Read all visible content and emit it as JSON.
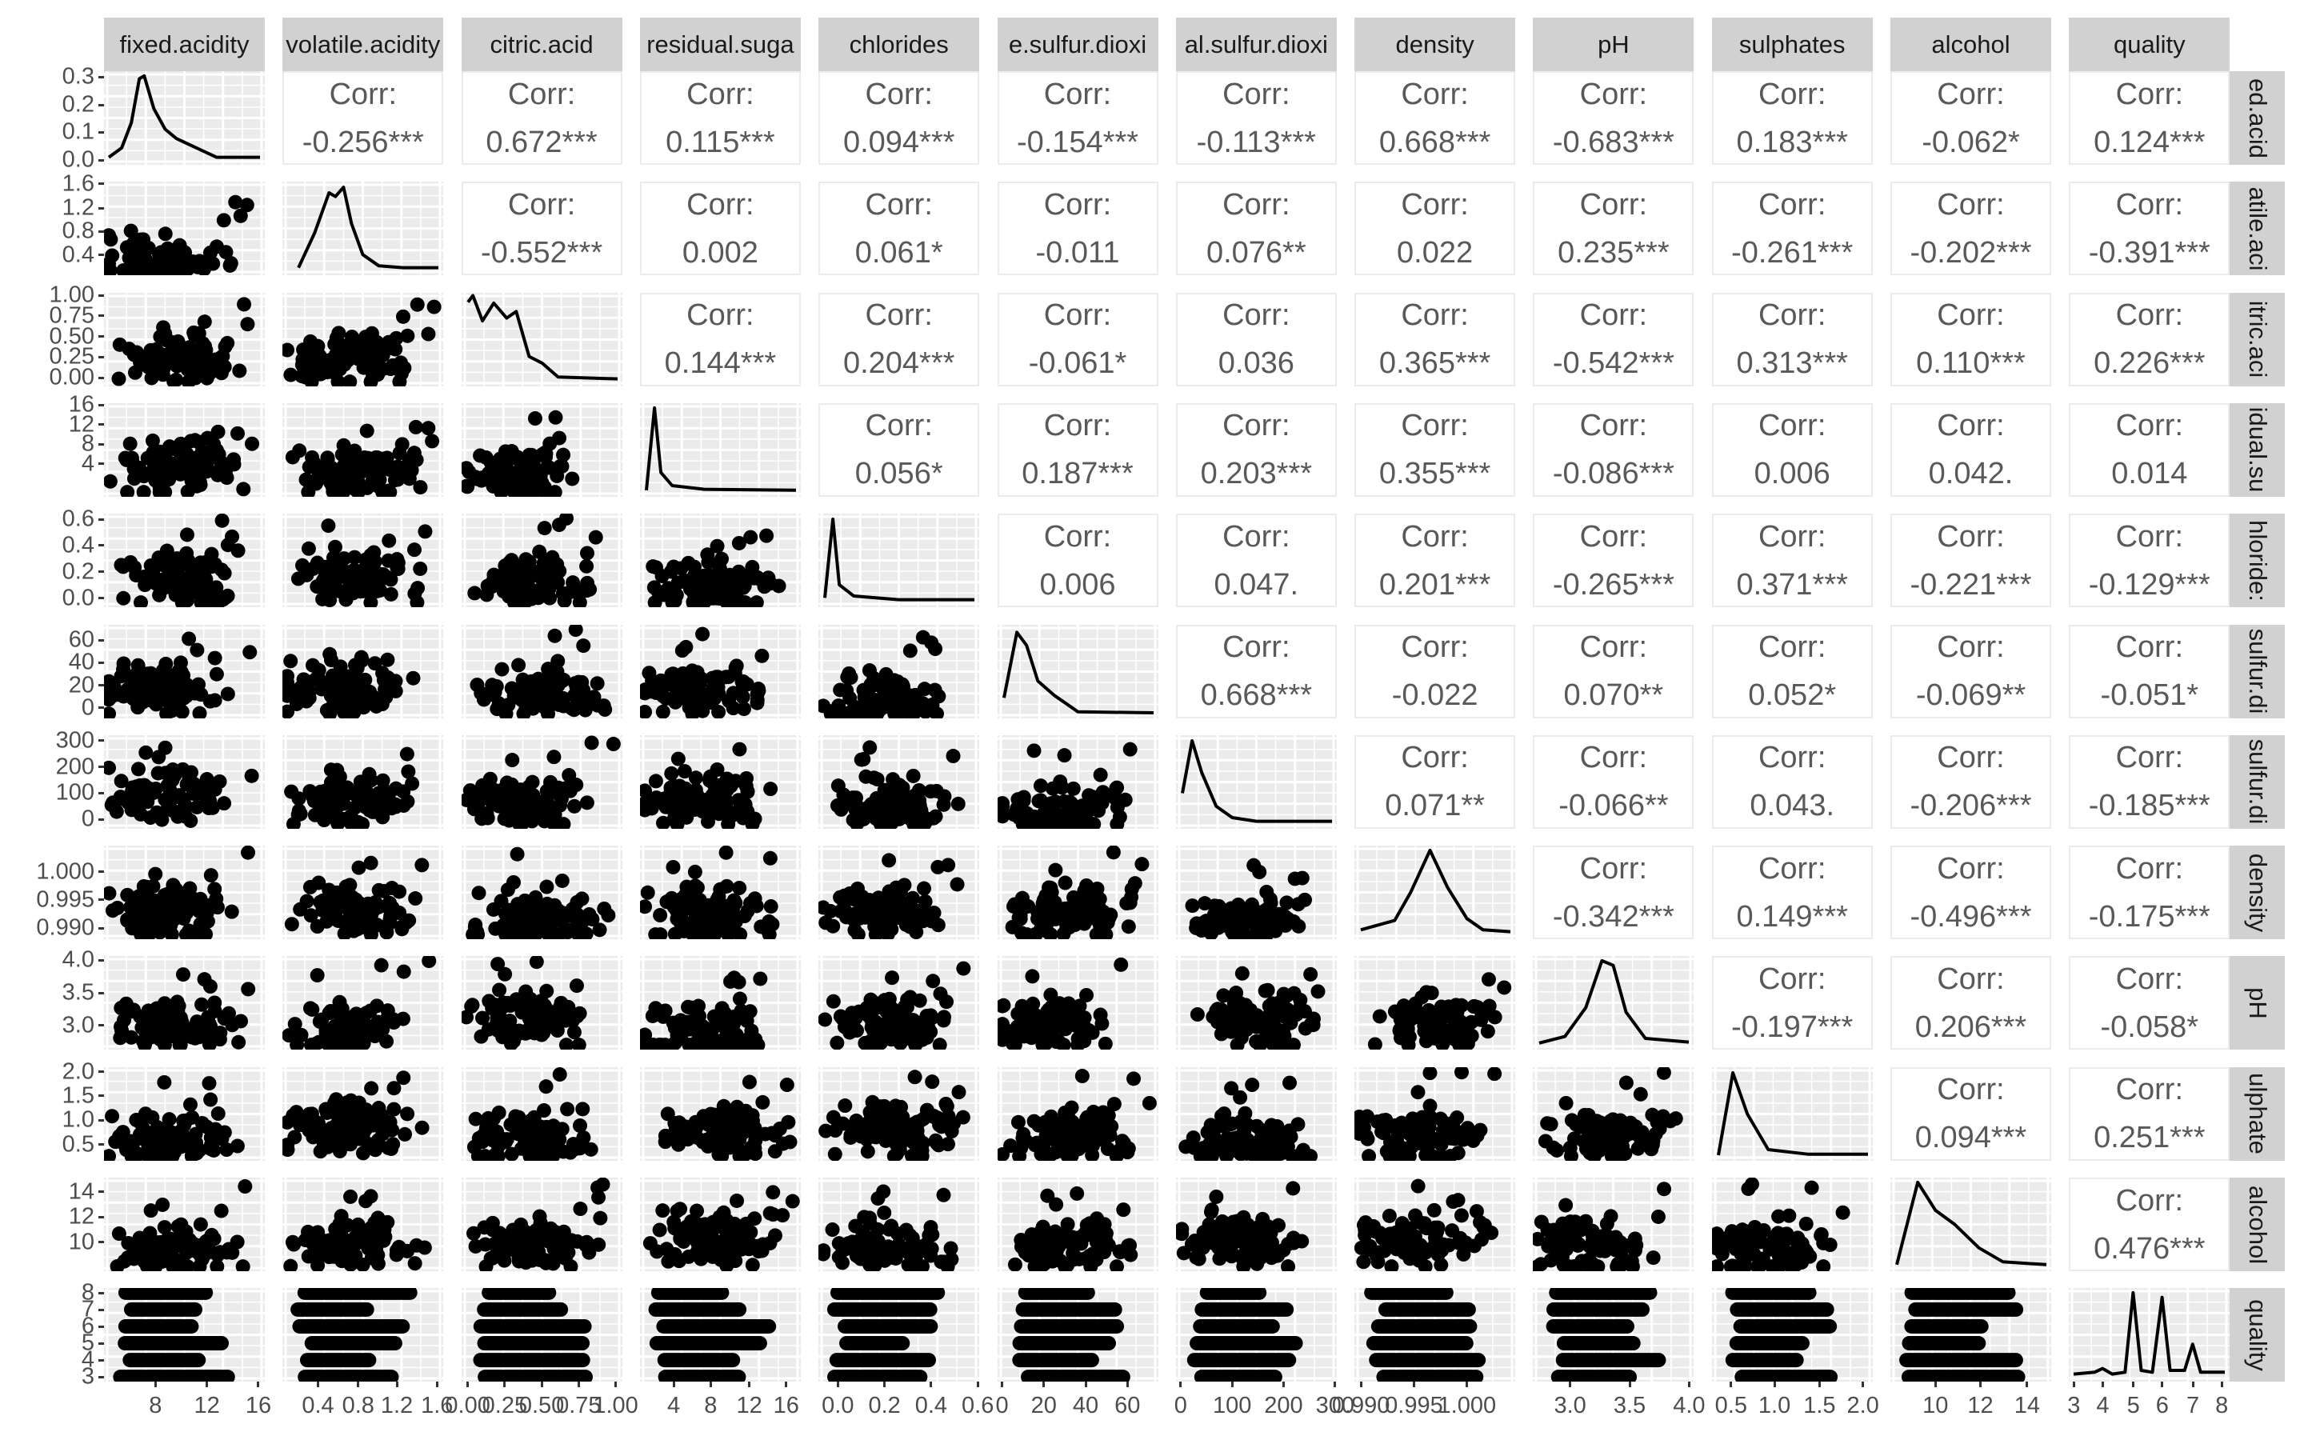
{
  "chart_data": {
    "type": "scatter-matrix",
    "title": "",
    "variables": [
      "fixed.acidity",
      "volatile.acidity",
      "citric.acid",
      "residual.sugar",
      "chlorides",
      "free.sulfur.dioxide",
      "total.sulfur.dioxide",
      "density",
      "pH",
      "sulphates",
      "alcohol",
      "quality"
    ],
    "strip_top_labels": [
      "fixed.acidity",
      "volatile.acidity",
      "citric.acid",
      "residual.suga",
      "chlorides",
      "e.sulfur.dioxi",
      "al.sulfur.dioxi",
      "density",
      "pH",
      "sulphates",
      "alcohol",
      "quality"
    ],
    "strip_right_labels": [
      "ed.acid",
      "atile.aci",
      "itric.aci",
      "idual.su",
      "hloride:",
      "sulfur.di",
      "sulfur.di",
      "density",
      "pH",
      "ulphate",
      "alcohol",
      "quality"
    ],
    "corr_label": "Corr:",
    "correlations": [
      [
        "",
        "-0.256***",
        "0.672***",
        "0.115***",
        "0.094***",
        "-0.154***",
        "-0.113***",
        "0.668***",
        "-0.683***",
        "0.183***",
        "-0.062*",
        "0.124***"
      ],
      [
        "",
        "",
        "-0.552***",
        "0.002",
        "0.061*",
        "-0.011",
        "0.076**",
        "0.022",
        "0.235***",
        "-0.261***",
        "-0.202***",
        "-0.391***"
      ],
      [
        "",
        "",
        "",
        "0.144***",
        "0.204***",
        "-0.061*",
        "0.036",
        "0.365***",
        "-0.542***",
        "0.313***",
        "0.110***",
        "0.226***"
      ],
      [
        "",
        "",
        "",
        "",
        "0.056*",
        "0.187***",
        "0.203***",
        "0.355***",
        "-0.086***",
        "0.006",
        "0.042.",
        "0.014"
      ],
      [
        "",
        "",
        "",
        "",
        "",
        "0.006",
        "0.047.",
        "0.201***",
        "-0.265***",
        "0.371***",
        "-0.221***",
        "-0.129***"
      ],
      [
        "",
        "",
        "",
        "",
        "",
        "",
        "0.668***",
        "-0.022",
        "0.070**",
        "0.052*",
        "-0.069**",
        "-0.051*"
      ],
      [
        "",
        "",
        "",
        "",
        "",
        "",
        "",
        "0.071**",
        "-0.066**",
        "0.043.",
        "-0.206***",
        "-0.185***"
      ],
      [
        "",
        "",
        "",
        "",
        "",
        "",
        "",
        "",
        "-0.342***",
        "0.149***",
        "-0.496***",
        "-0.175***"
      ],
      [
        "",
        "",
        "",
        "",
        "",
        "",
        "",
        "",
        "",
        "-0.197***",
        "0.206***",
        "-0.058*"
      ],
      [
        "",
        "",
        "",
        "",
        "",
        "",
        "",
        "",
        "",
        "",
        "0.094***",
        "0.251***"
      ],
      [
        "",
        "",
        "",
        "",
        "",
        "",
        "",
        "",
        "",
        "",
        "",
        "0.476***"
      ],
      [
        "",
        "",
        "",
        "",
        "",
        "",
        "",
        "",
        "",
        "",
        "",
        ""
      ]
    ],
    "y_axis_ticks": [
      {
        "labels": [
          "0.3",
          "0.2",
          "0.1",
          "0.0"
        ],
        "pos": [
          0.06,
          0.36,
          0.65,
          0.95
        ]
      },
      {
        "labels": [
          "1.6",
          "1.2",
          "0.8",
          "0.4"
        ],
        "pos": [
          0.02,
          0.28,
          0.53,
          0.78
        ]
      },
      {
        "labels": [
          "1.00",
          "0.75",
          "0.50",
          "0.25",
          "0.00"
        ],
        "pos": [
          0.03,
          0.25,
          0.47,
          0.69,
          0.91
        ]
      },
      {
        "labels": [
          "16",
          "12",
          "8",
          "4"
        ],
        "pos": [
          0.02,
          0.23,
          0.44,
          0.65
        ]
      },
      {
        "labels": [
          "0.6",
          "0.4",
          "0.2",
          "0.0"
        ],
        "pos": [
          0.06,
          0.34,
          0.62,
          0.9
        ]
      },
      {
        "labels": [
          "60",
          "40",
          "20",
          "0"
        ],
        "pos": [
          0.17,
          0.41,
          0.65,
          0.89
        ]
      },
      {
        "labels": [
          "300",
          "200",
          "100",
          "0"
        ],
        "pos": [
          0.06,
          0.34,
          0.62,
          0.9
        ]
      },
      {
        "labels": [
          "1.000",
          "0.995",
          "0.990"
        ],
        "pos": [
          0.28,
          0.58,
          0.88
        ]
      },
      {
        "labels": [
          "4.0",
          "3.5",
          "3.0"
        ],
        "pos": [
          0.04,
          0.39,
          0.74
        ]
      },
      {
        "labels": [
          "2.0",
          "1.5",
          "1.0",
          "0.5"
        ],
        "pos": [
          0.05,
          0.31,
          0.57,
          0.83
        ]
      },
      {
        "labels": [
          "14",
          "12",
          "10"
        ],
        "pos": [
          0.15,
          0.42,
          0.69
        ]
      },
      {
        "labels": [
          "8",
          "7",
          "6",
          "5",
          "4",
          "3"
        ],
        "pos": [
          0.05,
          0.23,
          0.41,
          0.59,
          0.77,
          0.95
        ]
      }
    ],
    "x_axis_ticks": [
      {
        "labels": [
          "8",
          "12",
          "16"
        ],
        "pos": [
          0.32,
          0.64,
          0.96
        ]
      },
      {
        "labels": [
          "0.4",
          "0.8",
          "1.2",
          "1.6"
        ],
        "pos": [
          0.22,
          0.47,
          0.71,
          0.96
        ]
      },
      {
        "labels": [
          "0.00",
          "0.25",
          "0.50",
          "0.75",
          "1.00"
        ],
        "pos": [
          0.04,
          0.27,
          0.5,
          0.73,
          0.96
        ]
      },
      {
        "labels": [
          "4",
          "8",
          "12",
          "16"
        ],
        "pos": [
          0.21,
          0.44,
          0.68,
          0.91
        ]
      },
      {
        "labels": [
          "0.0",
          "0.2",
          "0.4",
          "0.6"
        ],
        "pos": [
          0.12,
          0.41,
          0.7,
          0.99
        ]
      },
      {
        "labels": [
          "0",
          "20",
          "40",
          "60"
        ],
        "pos": [
          0.03,
          0.29,
          0.55,
          0.81
        ]
      },
      {
        "labels": [
          "0",
          "100",
          "200",
          "300"
        ],
        "pos": [
          0.03,
          0.35,
          0.67,
          0.99
        ]
      },
      {
        "labels": [
          "0.990",
          "0.995",
          "1.000"
        ],
        "pos": [
          0.04,
          0.37,
          0.7
        ]
      },
      {
        "labels": [
          "3.0",
          "3.5",
          "4.0"
        ],
        "pos": [
          0.23,
          0.6,
          0.97
        ]
      },
      {
        "labels": [
          "0.5",
          "1.0",
          "1.5",
          "2.0"
        ],
        "pos": [
          0.12,
          0.39,
          0.67,
          0.94
        ]
      },
      {
        "labels": [
          "10",
          "12",
          "14"
        ],
        "pos": [
          0.28,
          0.56,
          0.85
        ]
      },
      {
        "labels": [
          "3",
          "4",
          "5",
          "6",
          "7",
          "8"
        ],
        "pos": [
          0.03,
          0.21,
          0.4,
          0.58,
          0.77,
          0.95
        ]
      }
    ],
    "density_curves": [
      [
        [
          0.03,
          0.92
        ],
        [
          0.11,
          0.82
        ],
        [
          0.17,
          0.55
        ],
        [
          0.22,
          0.08
        ],
        [
          0.25,
          0.05
        ],
        [
          0.31,
          0.4
        ],
        [
          0.38,
          0.62
        ],
        [
          0.45,
          0.72
        ],
        [
          0.55,
          0.8
        ],
        [
          0.7,
          0.92
        ],
        [
          0.97,
          0.92
        ]
      ],
      [
        [
          0.1,
          0.92
        ],
        [
          0.2,
          0.55
        ],
        [
          0.29,
          0.12
        ],
        [
          0.33,
          0.16
        ],
        [
          0.38,
          0.06
        ],
        [
          0.43,
          0.45
        ],
        [
          0.5,
          0.78
        ],
        [
          0.6,
          0.9
        ],
        [
          0.75,
          0.92
        ],
        [
          0.97,
          0.92
        ]
      ],
      [
        [
          0.04,
          0.1
        ],
        [
          0.07,
          0.03
        ],
        [
          0.13,
          0.3
        ],
        [
          0.2,
          0.11
        ],
        [
          0.28,
          0.27
        ],
        [
          0.34,
          0.2
        ],
        [
          0.42,
          0.68
        ],
        [
          0.5,
          0.75
        ],
        [
          0.6,
          0.9
        ],
        [
          0.97,
          0.92
        ]
      ],
      [
        [
          0.04,
          0.93
        ],
        [
          0.09,
          0.05
        ],
        [
          0.13,
          0.74
        ],
        [
          0.2,
          0.88
        ],
        [
          0.4,
          0.92
        ],
        [
          0.97,
          0.93
        ]
      ],
      [
        [
          0.04,
          0.9
        ],
        [
          0.09,
          0.06
        ],
        [
          0.13,
          0.76
        ],
        [
          0.22,
          0.88
        ],
        [
          0.5,
          0.92
        ],
        [
          0.97,
          0.92
        ]
      ],
      [
        [
          0.04,
          0.78
        ],
        [
          0.12,
          0.08
        ],
        [
          0.18,
          0.22
        ],
        [
          0.25,
          0.6
        ],
        [
          0.35,
          0.75
        ],
        [
          0.5,
          0.93
        ],
        [
          0.97,
          0.94
        ]
      ],
      [
        [
          0.04,
          0.62
        ],
        [
          0.1,
          0.06
        ],
        [
          0.16,
          0.4
        ],
        [
          0.25,
          0.76
        ],
        [
          0.35,
          0.88
        ],
        [
          0.5,
          0.92
        ],
        [
          0.97,
          0.92
        ]
      ],
      [
        [
          0.04,
          0.9
        ],
        [
          0.25,
          0.8
        ],
        [
          0.35,
          0.5
        ],
        [
          0.47,
          0.05
        ],
        [
          0.58,
          0.45
        ],
        [
          0.7,
          0.78
        ],
        [
          0.8,
          0.9
        ],
        [
          0.97,
          0.92
        ]
      ],
      [
        [
          0.04,
          0.93
        ],
        [
          0.2,
          0.86
        ],
        [
          0.33,
          0.55
        ],
        [
          0.43,
          0.05
        ],
        [
          0.5,
          0.1
        ],
        [
          0.58,
          0.6
        ],
        [
          0.7,
          0.88
        ],
        [
          0.97,
          0.92
        ]
      ],
      [
        [
          0.04,
          0.94
        ],
        [
          0.13,
          0.06
        ],
        [
          0.22,
          0.5
        ],
        [
          0.35,
          0.88
        ],
        [
          0.6,
          0.93
        ],
        [
          0.97,
          0.93
        ]
      ],
      [
        [
          0.04,
          0.93
        ],
        [
          0.17,
          0.05
        ],
        [
          0.28,
          0.35
        ],
        [
          0.4,
          0.5
        ],
        [
          0.55,
          0.75
        ],
        [
          0.7,
          0.9
        ],
        [
          0.97,
          0.93
        ]
      ],
      [
        [
          0.03,
          0.92
        ],
        [
          0.16,
          0.9
        ],
        [
          0.21,
          0.86
        ],
        [
          0.27,
          0.92
        ],
        [
          0.35,
          0.9
        ],
        [
          0.4,
          0.05
        ],
        [
          0.45,
          0.88
        ],
        [
          0.52,
          0.9
        ],
        [
          0.58,
          0.1
        ],
        [
          0.63,
          0.88
        ],
        [
          0.72,
          0.88
        ],
        [
          0.77,
          0.6
        ],
        [
          0.82,
          0.9
        ],
        [
          0.97,
          0.9
        ]
      ]
    ],
    "scatter_note": "Lower-triangle panels show dense black scatter point clouds (pairwise scatter plots of all variables).",
    "grid": true,
    "panel_background": "#ebebeb",
    "strip_color": "#d1d1d1"
  }
}
